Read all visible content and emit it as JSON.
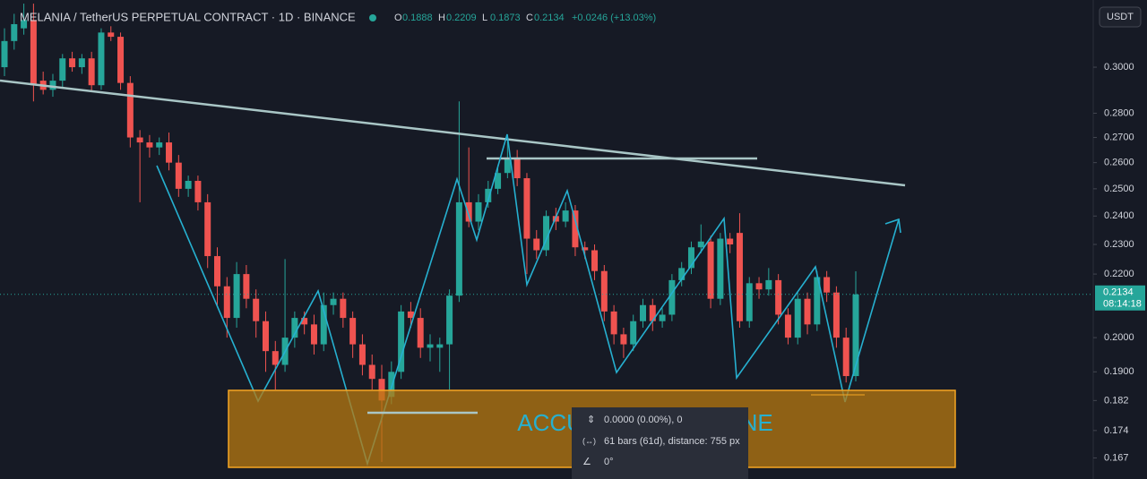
{
  "chart_data": {
    "type": "candlestick",
    "title": "MELANIA / TetherUS PERPETUAL CONTRACT · 1D · BINANCE",
    "ohlc_prefixes": [
      "O",
      "H",
      "L",
      "C"
    ],
    "change": "+0.0246 (+13.03%)",
    "currency": "USDT",
    "countdown": "08:14:18",
    "annotation": "ACCUMULATION ZONE",
    "tooltip": [
      "0.0000 (0.00%), 0",
      "61 bars (61d), distance: 755 px",
      "0°"
    ],
    "up_color": "#26a69a",
    "down_color": "#ef5350",
    "log_scale": true,
    "ylim": [
      0.1618,
      0.3318
    ],
    "yticks": [
      {
        "value": 0.3,
        "label": "0.3000"
      },
      {
        "value": 0.28,
        "label": "0.2800"
      },
      {
        "value": 0.27,
        "label": "0.2700"
      },
      {
        "value": 0.26,
        "label": "0.2600"
      },
      {
        "value": 0.25,
        "label": "0.2500"
      },
      {
        "value": 0.24,
        "label": "0.2400"
      },
      {
        "value": 0.23,
        "label": "0.2300"
      },
      {
        "value": 0.22,
        "label": "0.2200"
      },
      {
        "value": 0.2,
        "label": "0.2000"
      },
      {
        "value": 0.19,
        "label": "0.1900"
      },
      0.182,
      0.174,
      0.167
    ],
    "series": {
      "open": [
        0.3,
        0.312,
        0.318,
        0.322,
        0.294,
        0.29,
        0.294,
        0.304,
        0.3,
        0.304,
        0.292,
        0.316,
        0.314,
        0.293,
        0.27,
        0.268,
        0.266,
        0.268,
        0.26,
        0.25,
        0.253,
        0.245,
        0.226,
        0.216,
        0.206,
        0.22,
        0.212,
        0.205,
        0.196,
        0.192,
        0.2,
        0.206,
        0.204,
        0.198,
        0.21,
        0.212,
        0.206,
        0.198,
        0.192,
        0.188,
        0.183,
        0.19,
        0.208,
        0.206,
        0.197,
        0.197,
        0.198,
        0.213,
        0.245,
        0.238,
        0.245,
        0.25,
        0.256,
        0.262,
        0.254,
        0.232,
        0.228,
        0.24,
        0.238,
        0.242,
        0.229,
        0.228,
        0.221,
        0.208,
        0.201,
        0.198,
        0.205,
        0.21,
        0.205,
        0.207,
        0.218,
        0.222,
        0.229,
        0.231,
        0.212,
        0.232,
        0.234,
        0.205,
        0.217,
        0.215,
        0.218,
        0.207,
        0.2,
        0.212,
        0.204,
        0.219,
        0.214,
        0.2,
        0.1888
      ],
      "high": [
        0.318,
        0.325,
        0.33,
        0.33,
        0.298,
        0.297,
        0.306,
        0.307,
        0.306,
        0.307,
        0.318,
        0.319,
        0.316,
        0.296,
        0.273,
        0.271,
        0.27,
        0.272,
        0.263,
        0.255,
        0.255,
        0.248,
        0.229,
        0.219,
        0.224,
        0.223,
        0.215,
        0.208,
        0.199,
        0.225,
        0.208,
        0.208,
        0.207,
        0.214,
        0.214,
        0.214,
        0.208,
        0.201,
        0.195,
        0.192,
        0.193,
        0.21,
        0.211,
        0.209,
        0.201,
        0.2,
        0.215,
        0.285,
        0.266,
        0.248,
        0.253,
        0.259,
        0.27,
        0.265,
        0.256,
        0.235,
        0.242,
        0.243,
        0.245,
        0.244,
        0.231,
        0.23,
        0.223,
        0.21,
        0.203,
        0.207,
        0.212,
        0.212,
        0.209,
        0.22,
        0.224,
        0.231,
        0.237,
        0.233,
        0.234,
        0.234,
        0.241,
        0.219,
        0.219,
        0.222,
        0.22,
        0.209,
        0.214,
        0.214,
        0.221,
        0.221,
        0.216,
        0.203,
        0.2209
      ],
      "low": [
        0.296,
        0.308,
        0.315,
        0.285,
        0.288,
        0.287,
        0.291,
        0.298,
        0.297,
        0.289,
        0.29,
        0.312,
        0.29,
        0.266,
        0.245,
        0.262,
        0.263,
        0.257,
        0.247,
        0.247,
        0.242,
        0.222,
        0.21,
        0.2,
        0.203,
        0.209,
        0.2,
        0.19,
        0.185,
        0.19,
        0.197,
        0.201,
        0.195,
        0.196,
        0.207,
        0.203,
        0.194,
        0.189,
        0.185,
        0.166,
        0.181,
        0.188,
        0.203,
        0.194,
        0.193,
        0.19,
        0.185,
        0.211,
        0.236,
        0.235,
        0.243,
        0.248,
        0.254,
        0.251,
        0.22,
        0.225,
        0.226,
        0.235,
        0.236,
        0.226,
        0.225,
        0.218,
        0.205,
        0.198,
        0.194,
        0.196,
        0.203,
        0.202,
        0.203,
        0.205,
        0.216,
        0.22,
        0.227,
        0.209,
        0.21,
        0.227,
        0.203,
        0.203,
        0.212,
        0.213,
        0.204,
        0.198,
        0.198,
        0.201,
        0.202,
        0.211,
        0.197,
        0.187,
        0.1873
      ],
      "close": [
        0.312,
        0.32,
        0.322,
        0.292,
        0.29,
        0.294,
        0.304,
        0.3,
        0.304,
        0.292,
        0.316,
        0.314,
        0.293,
        0.27,
        0.268,
        0.266,
        0.268,
        0.26,
        0.25,
        0.253,
        0.245,
        0.226,
        0.216,
        0.206,
        0.22,
        0.212,
        0.205,
        0.196,
        0.192,
        0.2,
        0.206,
        0.204,
        0.198,
        0.21,
        0.212,
        0.206,
        0.198,
        0.192,
        0.188,
        0.182,
        0.19,
        0.208,
        0.206,
        0.197,
        0.198,
        0.198,
        0.213,
        0.245,
        0.238,
        0.245,
        0.25,
        0.256,
        0.262,
        0.254,
        0.232,
        0.228,
        0.24,
        0.238,
        0.242,
        0.229,
        0.228,
        0.221,
        0.208,
        0.201,
        0.198,
        0.205,
        0.21,
        0.205,
        0.207,
        0.218,
        0.222,
        0.229,
        0.231,
        0.212,
        0.232,
        0.23,
        0.205,
        0.217,
        0.215,
        0.218,
        0.207,
        0.2,
        0.212,
        0.204,
        0.219,
        0.214,
        0.2,
        0.1888,
        0.2134
      ]
    }
  }
}
